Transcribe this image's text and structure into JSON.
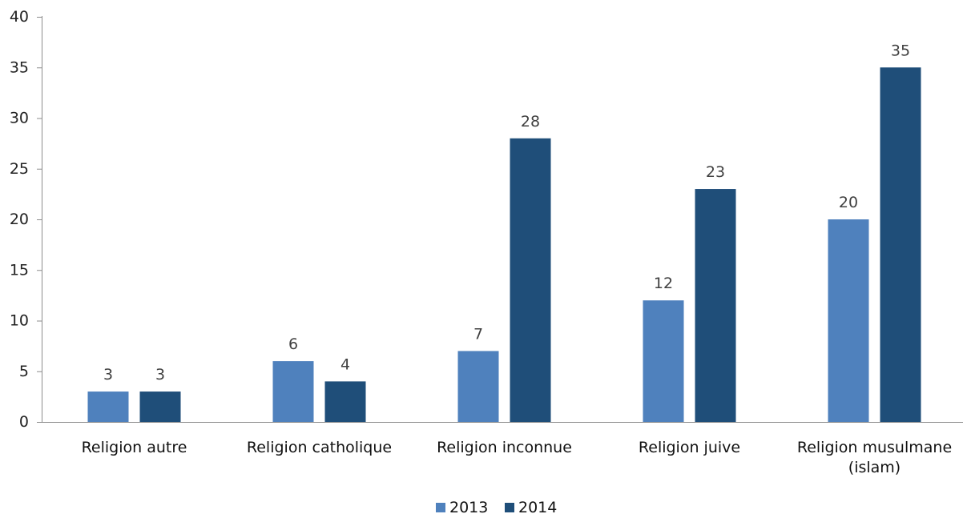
{
  "chart_data": {
    "type": "bar",
    "title": "",
    "xlabel": "",
    "ylabel": "",
    "categories": [
      [
        "Religion autre"
      ],
      [
        "Religion catholique"
      ],
      [
        "Religion inconnue"
      ],
      [
        "Religion juive"
      ],
      [
        "Religion musulmane",
        "(islam)"
      ]
    ],
    "series": [
      {
        "name": "2013",
        "color": "#4f81bd",
        "values": [
          3,
          6,
          7,
          12,
          20
        ]
      },
      {
        "name": "2014",
        "color": "#1f4e79",
        "values": [
          3,
          4,
          28,
          23,
          35
        ]
      }
    ],
    "ylim": [
      0,
      40
    ],
    "yticks": [
      0,
      5,
      10,
      15,
      20,
      25,
      30,
      35,
      40
    ],
    "grid": false,
    "legend_position": "bottom-center",
    "data_labels": true
  }
}
